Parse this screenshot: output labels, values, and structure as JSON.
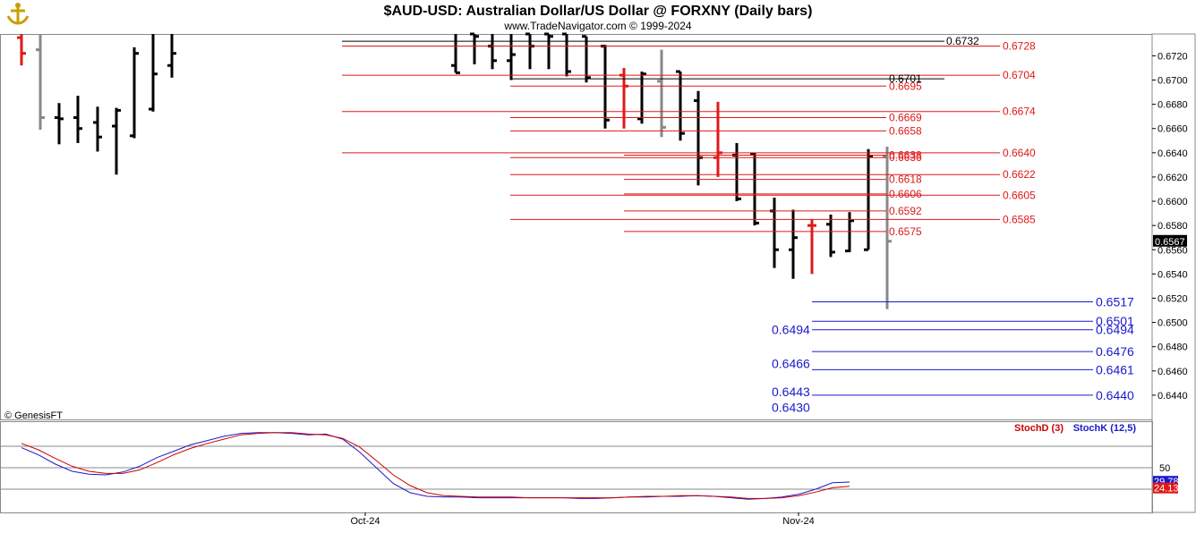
{
  "chart_data": {
    "type": "ohlc",
    "title": "$AUD-USD:  Australian Dollar/US Dollar @ FORXNY  (Daily bars)",
    "subtitle": "www.TradeNavigator.com © 1999-2024",
    "copyright": "© GenesisFT",
    "last_price": "0.6567",
    "y_ticks": [
      "0.6720",
      "0.6700",
      "0.6680",
      "0.6660",
      "0.6640",
      "0.6620",
      "0.6600",
      "0.6580",
      "0.6560",
      "0.6540",
      "0.6520",
      "0.6500",
      "0.6480",
      "0.6460",
      "0.6440"
    ],
    "ylim": [
      0.642,
      0.6738
    ],
    "x_ticks": [
      {
        "label": "Oct-24",
        "index": 21
      },
      {
        "label": "Nov-24",
        "index": 45
      }
    ],
    "bars": [
      {
        "o": 0.6735,
        "h": 0.6738,
        "l": 0.6712,
        "c": 0.6722,
        "color": "red"
      },
      {
        "o": 0.6725,
        "h": 0.6738,
        "l": 0.6659,
        "c": 0.6669,
        "color": "gray"
      },
      {
        "o": 0.6669,
        "h": 0.6681,
        "l": 0.6647,
        "c": 0.6668,
        "color": "black"
      },
      {
        "o": 0.6669,
        "h": 0.6687,
        "l": 0.6648,
        "c": 0.666,
        "color": "black"
      },
      {
        "o": 0.6665,
        "h": 0.6678,
        "l": 0.6641,
        "c": 0.6653,
        "color": "black"
      },
      {
        "o": 0.6662,
        "h": 0.6677,
        "l": 0.6622,
        "c": 0.6675,
        "color": "black"
      },
      {
        "o": 0.6654,
        "h": 0.6727,
        "l": 0.6652,
        "c": 0.6722,
        "color": "black"
      },
      {
        "o": 0.6676,
        "h": 0.6738,
        "l": 0.6674,
        "c": 0.6705,
        "color": "black"
      },
      {
        "o": 0.6712,
        "h": 0.6738,
        "l": 0.6702,
        "c": 0.6722,
        "color": "black"
      },
      {
        "o": 0.6712,
        "h": 0.6738,
        "l": 0.6706,
        "c": 0.6706,
        "color": "black"
      },
      {
        "o": 0.6738,
        "h": 0.6738,
        "l": 0.6713,
        "c": 0.6736,
        "color": "black"
      },
      {
        "o": 0.6728,
        "h": 0.6738,
        "l": 0.6709,
        "c": 0.6716,
        "color": "black"
      },
      {
        "o": 0.6716,
        "h": 0.6738,
        "l": 0.67,
        "c": 0.6721,
        "color": "black"
      },
      {
        "o": 0.6738,
        "h": 0.6738,
        "l": 0.6709,
        "c": 0.6728,
        "color": "black"
      },
      {
        "o": 0.6738,
        "h": 0.6738,
        "l": 0.6709,
        "c": 0.6736,
        "color": "black"
      },
      {
        "o": 0.6738,
        "h": 0.6738,
        "l": 0.6703,
        "c": 0.6707,
        "color": "black"
      },
      {
        "o": 0.6736,
        "h": 0.6736,
        "l": 0.6698,
        "c": 0.6702,
        "color": "black"
      },
      {
        "o": 0.6728,
        "h": 0.6729,
        "l": 0.666,
        "c": 0.6667,
        "color": "black"
      },
      {
        "o": 0.6704,
        "h": 0.671,
        "l": 0.666,
        "c": 0.6695,
        "color": "red"
      },
      {
        "o": 0.6668,
        "h": 0.6707,
        "l": 0.6664,
        "c": 0.6705,
        "color": "black"
      },
      {
        "o": 0.6699,
        "h": 0.6725,
        "l": 0.6653,
        "c": 0.6661,
        "color": "gray"
      },
      {
        "o": 0.6707,
        "h": 0.6707,
        "l": 0.665,
        "c": 0.6656,
        "color": "black"
      },
      {
        "o": 0.6683,
        "h": 0.6691,
        "l": 0.6613,
        "c": 0.6636,
        "color": "black"
      },
      {
        "o": 0.6636,
        "h": 0.6682,
        "l": 0.662,
        "c": 0.664,
        "color": "red"
      },
      {
        "o": 0.6638,
        "h": 0.6648,
        "l": 0.66,
        "c": 0.6602,
        "color": "black"
      },
      {
        "o": 0.6639,
        "h": 0.664,
        "l": 0.658,
        "c": 0.6582,
        "color": "black"
      },
      {
        "o": 0.6592,
        "h": 0.6603,
        "l": 0.6545,
        "c": 0.656,
        "color": "black"
      },
      {
        "o": 0.656,
        "h": 0.6593,
        "l": 0.6536,
        "c": 0.657,
        "color": "black"
      },
      {
        "o": 0.658,
        "h": 0.6585,
        "l": 0.654,
        "c": 0.658,
        "color": "red"
      },
      {
        "o": 0.6581,
        "h": 0.6589,
        "l": 0.6554,
        "c": 0.6558,
        "color": "black"
      },
      {
        "o": 0.6559,
        "h": 0.6591,
        "l": 0.6558,
        "c": 0.6584,
        "color": "black"
      },
      {
        "o": 0.656,
        "h": 0.6643,
        "l": 0.656,
        "c": 0.6637,
        "color": "black"
      },
      {
        "o": 0.6637,
        "h": 0.6645,
        "l": 0.6511,
        "c": 0.6567,
        "color": "gray"
      }
    ],
    "levels": [
      {
        "value": 0.6732,
        "label": "0.6732",
        "color": "#000000",
        "label_side": "mid",
        "x_start": "early"
      },
      {
        "value": 0.6728,
        "label": "0.6728",
        "color": "#e01818",
        "label_side": "right",
        "x_start": "early"
      },
      {
        "value": 0.6704,
        "label": "0.6704",
        "color": "#e01818",
        "label_side": "right",
        "x_start": "early"
      },
      {
        "value": 0.6701,
        "label": "0.6701",
        "color": "#000000",
        "label_side": "mid",
        "x_start": "mid"
      },
      {
        "value": 0.6695,
        "label": "0.6695",
        "color": "#e01818",
        "label_side": "mid",
        "x_start": "mid"
      },
      {
        "value": 0.6674,
        "label": "0.6674",
        "color": "#e01818",
        "label_side": "right",
        "x_start": "early"
      },
      {
        "value": 0.6669,
        "label": "0.6669",
        "color": "#e01818",
        "label_side": "mid",
        "x_start": "mid"
      },
      {
        "value": 0.6658,
        "label": "0.6658",
        "color": "#e01818",
        "label_side": "mid",
        "x_start": "mid"
      },
      {
        "value": 0.664,
        "label": "0.6640",
        "color": "#e01818",
        "label_side": "right",
        "x_start": "early"
      },
      {
        "value": 0.6638,
        "label": "0.6638",
        "color": "#e01818",
        "label_side": "mid",
        "x_start": "late"
      },
      {
        "value": 0.6636,
        "label": "0.6636",
        "color": "#e01818",
        "label_side": "mid",
        "x_start": "mid"
      },
      {
        "value": 0.6622,
        "label": "0.6622",
        "color": "#e01818",
        "label_side": "right",
        "x_start": "mid"
      },
      {
        "value": 0.6618,
        "label": "0.6618",
        "color": "#e01818",
        "label_side": "mid",
        "x_start": "late"
      },
      {
        "value": 0.6606,
        "label": "0.6606",
        "color": "#e01818",
        "label_side": "mid",
        "x_start": "late"
      },
      {
        "value": 0.6605,
        "label": "0.6605",
        "color": "#e01818",
        "label_side": "right",
        "x_start": "mid"
      },
      {
        "value": 0.6592,
        "label": "0.6592",
        "color": "#e01818",
        "label_side": "mid",
        "x_start": "late"
      },
      {
        "value": 0.6585,
        "label": "0.6585",
        "color": "#e01818",
        "label_side": "right",
        "x_start": "mid"
      },
      {
        "value": 0.6575,
        "label": "0.6575",
        "color": "#e01818",
        "label_side": "mid",
        "x_start": "late"
      },
      {
        "value": 0.6517,
        "label": "0.6517",
        "color": "#1a1acc",
        "label_side": "far",
        "x_start": "end"
      },
      {
        "value": 0.6501,
        "label": "0.6501",
        "color": "#1a1acc",
        "label_side": "far",
        "x_start": "end"
      },
      {
        "value": 0.6494,
        "label": "0.6494",
        "color": "#1a1acc",
        "label_side": "far",
        "x_start": "end"
      },
      {
        "value": 0.6494,
        "label": "0.6494",
        "color": "#1a1acc",
        "label_side": "left",
        "x_start": "end"
      },
      {
        "value": 0.6476,
        "label": "0.6476",
        "color": "#1a1acc",
        "label_side": "far",
        "x_start": "end"
      },
      {
        "value": 0.6466,
        "label": "0.6466",
        "color": "#1a1acc",
        "label_side": "left",
        "x_start": "end"
      },
      {
        "value": 0.6461,
        "label": "0.6461",
        "color": "#1a1acc",
        "label_side": "far",
        "x_start": "end"
      },
      {
        "value": 0.6443,
        "label": "0.6443",
        "color": "#1a1acc",
        "label_side": "left",
        "x_start": "end"
      },
      {
        "value": 0.644,
        "label": "0.6440",
        "color": "#1a1acc",
        "label_side": "far",
        "x_start": "end"
      },
      {
        "value": 0.643,
        "label": "0.6430",
        "color": "#1a1acc",
        "label_side": "left",
        "x_start": "end"
      }
    ],
    "stochastic": {
      "legend": [
        {
          "label": "StochD (3)",
          "color": "#cc0000"
        },
        {
          "label": "StochK (12,5)",
          "color": "#1a1acc"
        }
      ],
      "ylim": [
        0,
        100
      ],
      "levels": [
        80,
        50,
        20
      ],
      "tick_label": "50",
      "last_k": "29.78",
      "last_d": "24.13",
      "k": [
        78,
        68,
        55,
        45,
        41,
        40,
        44,
        52,
        64,
        73,
        82,
        88,
        94,
        98,
        99,
        99,
        98,
        96,
        97,
        90,
        72,
        50,
        28,
        15,
        10,
        9,
        9,
        8,
        8,
        8,
        8,
        8,
        8,
        7,
        7,
        8,
        9,
        9,
        10,
        10,
        11,
        10,
        8,
        6,
        7,
        9,
        13,
        20,
        29,
        30
      ],
      "d": [
        84,
        75,
        63,
        52,
        45,
        42,
        42,
        47,
        57,
        68,
        77,
        84,
        90,
        96,
        98,
        99,
        99,
        97,
        96,
        91,
        79,
        60,
        40,
        25,
        15,
        11,
        10,
        9,
        9,
        9,
        8,
        8,
        8,
        8,
        8,
        8,
        9,
        10,
        10,
        11,
        11,
        10,
        9,
        7,
        7,
        8,
        11,
        16,
        22,
        24
      ]
    }
  }
}
